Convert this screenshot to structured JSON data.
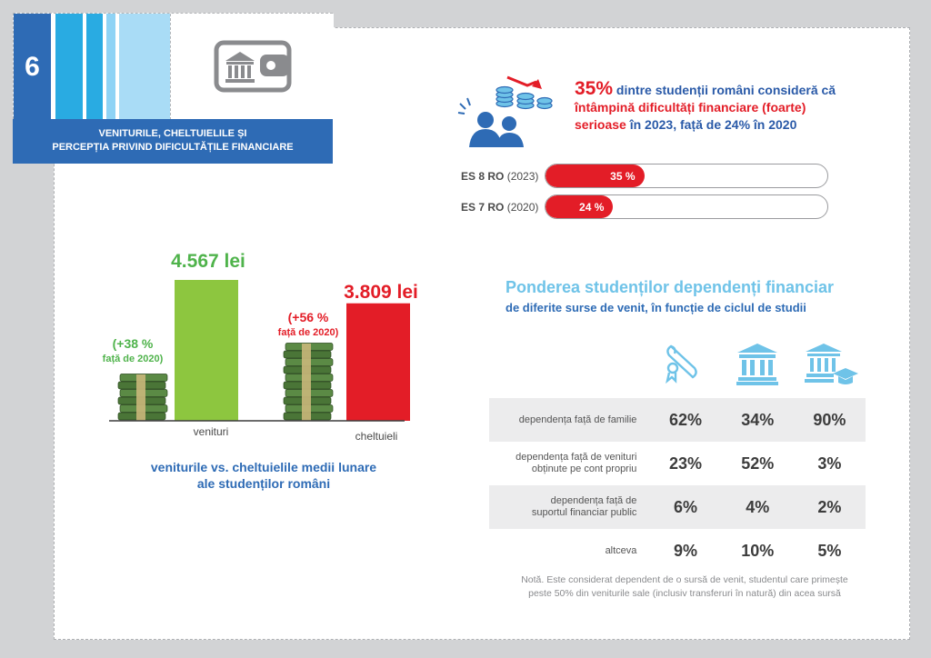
{
  "header": {
    "number": "6",
    "title_line1": "VENITURILE, CHELTUIELILE ȘI",
    "title_line2": "PERCEPȚIA PRIVIND DIFICULTĂȚILE FINANCIARE",
    "icon": "bank-wallet-icon"
  },
  "stat": {
    "percent": "35%",
    "text_a": " dintre studenții români consideră că ",
    "text_red": "întâmpină dificultăți financiare (foarte) serioase",
    "text_b": " în 2023",
    "text_c": ", față de  24% în 2020",
    "icon": "students-coins-icon"
  },
  "progress": [
    {
      "label_bold": "ES 8 RO",
      "label_rest": " (2023)",
      "value": 35,
      "text": "35 %"
    },
    {
      "label_bold": "ES 7 RO",
      "label_rest": " (2020)",
      "value": 24,
      "text": "24 %"
    }
  ],
  "money": {
    "income_value": "4.567 lei",
    "income_change_1": "(+38 %",
    "income_change_2": "față de 2020)",
    "income_label": "venituri",
    "expense_value": "3.809 lei",
    "expense_change_1": "(+56 %",
    "expense_change_2": "față de  2020)",
    "expense_label": "cheltuieli",
    "caption_1": "veniturile vs. cheltuielile medii lunare",
    "caption_2": "ale studenților români",
    "icon": "money-stack-icon"
  },
  "table": {
    "title": "Ponderea studenților dependenți financiar",
    "subtitle": "de diferite surse de venit, în funcție de ciclul de studii",
    "column_icons": [
      "diploma-icon",
      "university-icon",
      "graduate-university-icon"
    ],
    "rows": [
      {
        "label_1": "dependența față de familie",
        "label_2": "",
        "values": [
          "62%",
          "34%",
          "90%"
        ]
      },
      {
        "label_1": "dependența față de venituri",
        "label_2": "obținute pe cont propriu",
        "values": [
          "23%",
          "52%",
          "3%"
        ]
      },
      {
        "label_1": "dependența față de",
        "label_2": "suportul financiar public",
        "values": [
          "6%",
          "4%",
          "2%"
        ]
      },
      {
        "label_1": "altceva",
        "label_2": "",
        "values": [
          "9%",
          "10%",
          "5%"
        ]
      }
    ]
  },
  "note": {
    "line1": "Notă. Este considerat dependent de o sursă de venit, studentul care primește",
    "line2": "peste 50% din veniturile sale (inclusiv transferuri în natură) din acea sursă"
  },
  "chart_data": [
    {
      "type": "bar",
      "categories": [
        "ES 8 RO (2023)",
        "ES 7 RO (2020)"
      ],
      "values": [
        35,
        24
      ],
      "ylim": [
        0,
        100
      ]
    },
    {
      "type": "bar",
      "categories": [
        "venituri",
        "cheltuieli"
      ],
      "values": [
        4567,
        3809
      ],
      "colors": [
        "#8dc63f",
        "#e31d27"
      ]
    },
    {
      "type": "table",
      "columns": [
        "diploma-icon",
        "university-icon",
        "graduate-university-icon"
      ],
      "rows": [
        "dependența față de familie",
        "dependența față de venituri obținute pe cont propriu",
        "dependența față de suportul financiar public",
        "altceva"
      ],
      "values": [
        [
          62,
          34,
          90
        ],
        [
          23,
          52,
          3
        ],
        [
          6,
          4,
          2
        ],
        [
          9,
          10,
          5
        ]
      ]
    }
  ],
  "colors": {
    "blue": "#2e6bb5",
    "light_blue": "#6fc3e8",
    "red": "#e31d27",
    "green": "#8dc63f",
    "gray_bg": "#d2d3d5"
  }
}
